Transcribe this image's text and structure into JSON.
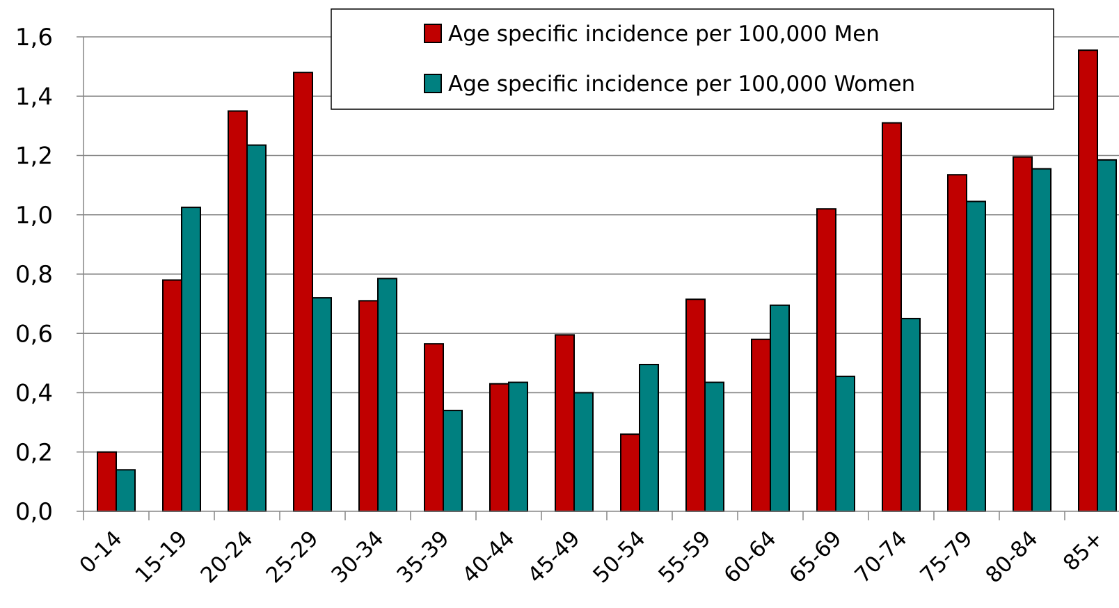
{
  "chart_data": {
    "type": "bar",
    "categories": [
      "0-14",
      "15-19",
      "20-24",
      "25-29",
      "30-34",
      "35-39",
      "40-44",
      "45-49",
      "50-54",
      "55-59",
      "60-64",
      "65-69",
      "70-74",
      "75-79",
      "80-84",
      "85+"
    ],
    "series": [
      {
        "name": "Age specific incidence per 100,000 Men",
        "color": "#C00000",
        "values": [
          0.2,
          0.78,
          1.35,
          1.48,
          0.71,
          0.565,
          0.43,
          0.595,
          0.26,
          0.715,
          0.58,
          1.02,
          1.31,
          1.135,
          1.195,
          1.555
        ]
      },
      {
        "name": "Age specific incidence per 100,000 Women",
        "color": "#008080",
        "values": [
          0.14,
          1.025,
          1.235,
          0.72,
          0.785,
          0.34,
          0.435,
          0.4,
          0.495,
          0.435,
          0.695,
          0.455,
          0.65,
          1.045,
          1.155,
          1.185
        ]
      }
    ],
    "yticks": [
      "0,0",
      "0,2",
      "0,4",
      "0,6",
      "0,8",
      "1,0",
      "1,2",
      "1,4",
      "1,6"
    ],
    "ylim": [
      0,
      1.6
    ],
    "grid": true,
    "legend_position": "top-center",
    "title": "",
    "xlabel": "",
    "ylabel": ""
  }
}
